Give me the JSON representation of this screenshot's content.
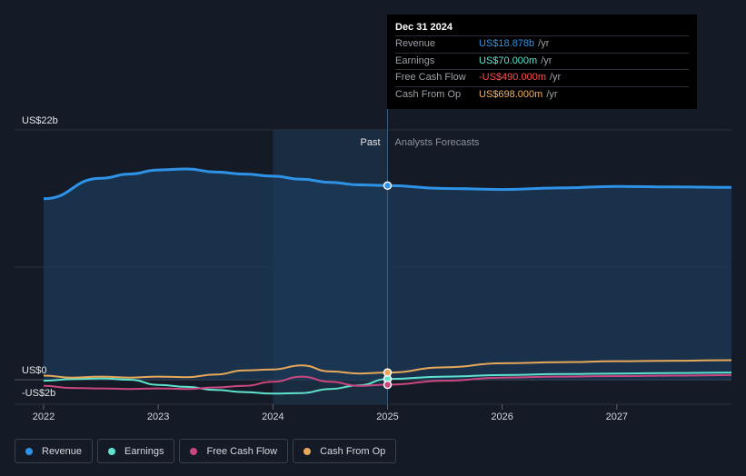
{
  "tooltip": {
    "date": "Dec 31 2024",
    "rows": [
      {
        "label": "Revenue",
        "value": "US$18.878b",
        "unit": "/yr",
        "color": "#2e93e6"
      },
      {
        "label": "Earnings",
        "value": "US$70.000m",
        "unit": "/yr",
        "color": "#5fe3cf"
      },
      {
        "label": "Free Cash Flow",
        "value": "-US$490.000m",
        "unit": "/yr",
        "color": "#ff4d4d"
      },
      {
        "label": "Cash From Op",
        "value": "US$698.000m",
        "unit": "/yr",
        "color": "#f2b25c"
      }
    ]
  },
  "legend": [
    {
      "label": "Revenue",
      "color": "#2e93e6"
    },
    {
      "label": "Earnings",
      "color": "#5fe3cf"
    },
    {
      "label": "Free Cash Flow",
      "color": "#c9477f"
    },
    {
      "label": "Cash From Op",
      "color": "#e8a85a"
    }
  ],
  "chart_data": {
    "type": "line",
    "y_labels": [
      "US$22b",
      "US$0",
      "-US$2b"
    ],
    "past_label": "Past",
    "forecast_label": "Analysts Forecasts",
    "x_ticks": [
      2022,
      2023,
      2024,
      2025,
      2026,
      2027
    ],
    "x_range": [
      2022,
      2028
    ],
    "ylim": [
      -2,
      22
    ],
    "divider_x": 2025,
    "highlight_range": [
      2024,
      2025
    ],
    "series": [
      {
        "name": "Revenue",
        "color": "#2e93e6",
        "fill": true,
        "width": 3,
        "x": [
          2022,
          2022.5,
          2022.75,
          2023,
          2023.25,
          2023.5,
          2023.75,
          2024,
          2024.25,
          2024.5,
          2024.75,
          2025,
          2025.5,
          2026,
          2026.5,
          2027,
          2027.5,
          2028
        ],
        "y": [
          17.6,
          19.6,
          20.0,
          20.4,
          20.5,
          20.2,
          20.0,
          19.8,
          19.5,
          19.2,
          18.95,
          18.88,
          18.6,
          18.5,
          18.65,
          18.8,
          18.75,
          18.7
        ]
      },
      {
        "name": "Earnings",
        "color": "#5fe3cf",
        "fill": false,
        "width": 2,
        "x": [
          2022,
          2022.25,
          2022.5,
          2022.75,
          2023,
          2023.25,
          2023.5,
          2023.75,
          2024,
          2024.25,
          2024.5,
          2024.75,
          2025,
          2025.5,
          2026,
          2026.5,
          2027,
          2027.5,
          2028
        ],
        "y": [
          -0.1,
          0.05,
          0.12,
          0.0,
          -0.5,
          -0.7,
          -1.0,
          -1.2,
          -1.35,
          -1.3,
          -0.9,
          -0.55,
          0.07,
          0.3,
          0.45,
          0.55,
          0.6,
          0.65,
          0.7
        ]
      },
      {
        "name": "Free Cash Flow",
        "color": "#c9477f",
        "fill": false,
        "width": 2,
        "x": [
          2022,
          2022.25,
          2022.5,
          2022.75,
          2023,
          2023.25,
          2023.5,
          2023.75,
          2024,
          2024.25,
          2024.5,
          2024.75,
          2025,
          2025.5,
          2026,
          2026.5,
          2027,
          2027.5,
          2028
        ],
        "y": [
          -0.6,
          -0.8,
          -0.85,
          -0.9,
          -0.85,
          -0.9,
          -0.75,
          -0.6,
          -0.2,
          0.3,
          -0.2,
          -0.6,
          -0.49,
          -0.1,
          0.2,
          0.3,
          0.35,
          0.4,
          0.45
        ]
      },
      {
        "name": "Cash From Op",
        "color": "#e8a85a",
        "fill": false,
        "width": 2,
        "x": [
          2022,
          2022.25,
          2022.5,
          2022.75,
          2023,
          2023.25,
          2023.5,
          2023.75,
          2024,
          2024.25,
          2024.5,
          2024.75,
          2025,
          2025.5,
          2026,
          2026.5,
          2027,
          2027.5,
          2028
        ],
        "y": [
          0.4,
          0.2,
          0.3,
          0.2,
          0.3,
          0.25,
          0.5,
          0.9,
          1.0,
          1.4,
          0.8,
          0.6,
          0.698,
          1.2,
          1.6,
          1.7,
          1.8,
          1.85,
          1.9
        ]
      }
    ]
  }
}
